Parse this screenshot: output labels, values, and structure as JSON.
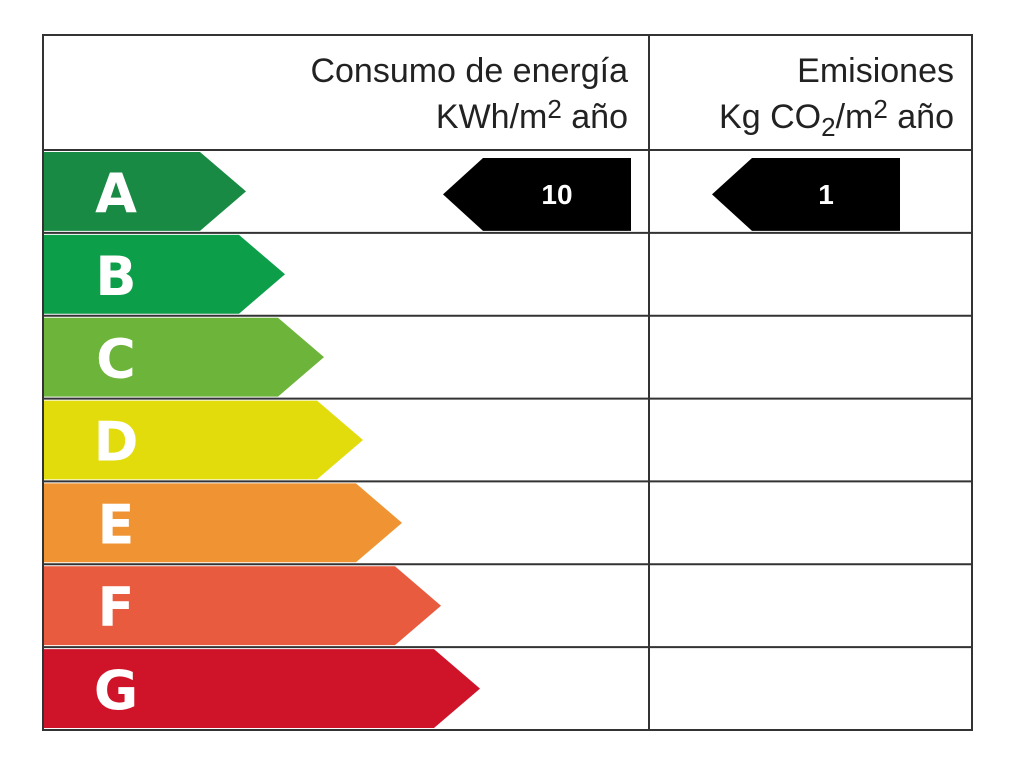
{
  "header": {
    "energy": {
      "title": "Consumo de energía",
      "unit": [
        "KWh/m",
        "2",
        " año"
      ]
    },
    "emissions": {
      "title": "Emisiones",
      "unit": [
        "Kg CO",
        "2",
        "/m",
        "2",
        " año"
      ]
    }
  },
  "ratings": [
    {
      "letter": "A",
      "color": "#198a44",
      "energy": 10,
      "emissions": 1
    },
    {
      "letter": "B",
      "color": "#0d9e4a"
    },
    {
      "letter": "C",
      "color": "#6cb43a"
    },
    {
      "letter": "D",
      "color": "#e2dc0c"
    },
    {
      "letter": "E",
      "color": "#f09433"
    },
    {
      "letter": "F",
      "color": "#e85b3f"
    },
    {
      "letter": "G",
      "color": "#cf1429"
    }
  ]
}
